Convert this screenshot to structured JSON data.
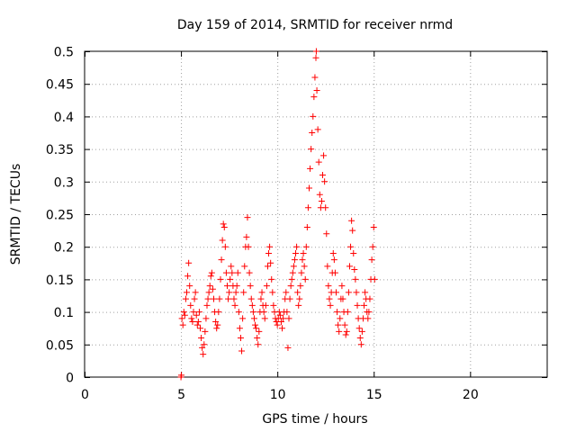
{
  "chart_data": {
    "type": "scatter",
    "title": "Day 159 of 2014, SRMTID for receiver nrmd",
    "xlabel": "GPS time / hours",
    "ylabel": "SRMTID / TECUs",
    "xlim": [
      0,
      24
    ],
    "ylim": [
      0,
      0.5
    ],
    "xticks": [
      0,
      5,
      10,
      15,
      20
    ],
    "yticks": [
      0,
      0.05,
      0.1,
      0.15,
      0.2,
      0.25,
      0.3,
      0.35,
      0.4,
      0.45,
      0.5
    ],
    "xtick_labels": [
      "0",
      "5",
      "10",
      "15",
      "20"
    ],
    "ytick_labels": [
      "0",
      "0.05",
      "0.1",
      "0.15",
      "0.2",
      "0.25",
      "0.3",
      "0.35",
      "0.4",
      "0.45",
      "0.5"
    ],
    "grid": true,
    "legend": "none",
    "marker": "+",
    "color": "#ff0000",
    "points": [
      [
        5.0,
        0.0
      ],
      [
        5.02,
        0.003
      ],
      [
        5.05,
        0.09
      ],
      [
        5.1,
        0.08
      ],
      [
        5.15,
        0.1
      ],
      [
        5.2,
        0.095
      ],
      [
        5.25,
        0.12
      ],
      [
        5.3,
        0.13
      ],
      [
        5.35,
        0.155
      ],
      [
        5.4,
        0.175
      ],
      [
        5.45,
        0.14
      ],
      [
        5.5,
        0.11
      ],
      [
        5.55,
        0.09
      ],
      [
        5.6,
        0.085
      ],
      [
        5.65,
        0.1
      ],
      [
        5.7,
        0.12
      ],
      [
        5.75,
        0.13
      ],
      [
        5.8,
        0.095
      ],
      [
        5.85,
        0.08
      ],
      [
        5.9,
        0.085
      ],
      [
        5.95,
        0.1
      ],
      [
        6.0,
        0.075
      ],
      [
        6.05,
        0.06
      ],
      [
        6.1,
        0.045
      ],
      [
        6.15,
        0.035
      ],
      [
        6.2,
        0.05
      ],
      [
        6.25,
        0.07
      ],
      [
        6.3,
        0.09
      ],
      [
        6.35,
        0.11
      ],
      [
        6.4,
        0.12
      ],
      [
        6.45,
        0.13
      ],
      [
        6.5,
        0.14
      ],
      [
        6.55,
        0.155
      ],
      [
        6.6,
        0.16
      ],
      [
        6.65,
        0.135
      ],
      [
        6.7,
        0.12
      ],
      [
        6.75,
        0.1
      ],
      [
        6.8,
        0.085
      ],
      [
        6.85,
        0.075
      ],
      [
        6.9,
        0.08
      ],
      [
        6.95,
        0.1
      ],
      [
        7.0,
        0.12
      ],
      [
        7.05,
        0.15
      ],
      [
        7.1,
        0.18
      ],
      [
        7.15,
        0.21
      ],
      [
        7.2,
        0.235
      ],
      [
        7.25,
        0.23
      ],
      [
        7.3,
        0.2
      ],
      [
        7.35,
        0.16
      ],
      [
        7.4,
        0.14
      ],
      [
        7.45,
        0.12
      ],
      [
        7.5,
        0.13
      ],
      [
        7.55,
        0.15
      ],
      [
        7.6,
        0.17
      ],
      [
        7.65,
        0.16
      ],
      [
        7.7,
        0.14
      ],
      [
        7.75,
        0.12
      ],
      [
        7.8,
        0.11
      ],
      [
        7.85,
        0.13
      ],
      [
        7.9,
        0.14
      ],
      [
        7.95,
        0.16
      ],
      [
        8.0,
        0.1
      ],
      [
        8.05,
        0.075
      ],
      [
        8.1,
        0.06
      ],
      [
        8.15,
        0.04
      ],
      [
        8.2,
        0.09
      ],
      [
        8.25,
        0.13
      ],
      [
        8.3,
        0.17
      ],
      [
        8.35,
        0.2
      ],
      [
        8.4,
        0.215
      ],
      [
        8.45,
        0.245
      ],
      [
        8.5,
        0.2
      ],
      [
        8.55,
        0.16
      ],
      [
        8.6,
        0.14
      ],
      [
        8.65,
        0.12
      ],
      [
        8.7,
        0.11
      ],
      [
        8.75,
        0.1
      ],
      [
        8.8,
        0.09
      ],
      [
        8.85,
        0.08
      ],
      [
        8.9,
        0.075
      ],
      [
        8.95,
        0.06
      ],
      [
        9.0,
        0.05
      ],
      [
        9.05,
        0.07
      ],
      [
        9.1,
        0.1
      ],
      [
        9.15,
        0.12
      ],
      [
        9.2,
        0.13
      ],
      [
        9.25,
        0.11
      ],
      [
        9.3,
        0.1
      ],
      [
        9.35,
        0.09
      ],
      [
        9.4,
        0.11
      ],
      [
        9.45,
        0.14
      ],
      [
        9.5,
        0.17
      ],
      [
        9.55,
        0.19
      ],
      [
        9.6,
        0.2
      ],
      [
        9.65,
        0.175
      ],
      [
        9.7,
        0.15
      ],
      [
        9.75,
        0.13
      ],
      [
        9.8,
        0.11
      ],
      [
        9.85,
        0.1
      ],
      [
        9.9,
        0.09
      ],
      [
        9.95,
        0.085
      ],
      [
        10.0,
        0.08
      ],
      [
        10.05,
        0.09
      ],
      [
        10.1,
        0.1
      ],
      [
        10.15,
        0.095
      ],
      [
        10.2,
        0.085
      ],
      [
        10.25,
        0.075
      ],
      [
        10.3,
        0.09
      ],
      [
        10.35,
        0.1
      ],
      [
        10.4,
        0.12
      ],
      [
        10.45,
        0.13
      ],
      [
        10.5,
        0.1
      ],
      [
        10.55,
        0.045
      ],
      [
        10.6,
        0.09
      ],
      [
        10.65,
        0.12
      ],
      [
        10.7,
        0.14
      ],
      [
        10.75,
        0.15
      ],
      [
        10.8,
        0.16
      ],
      [
        10.85,
        0.17
      ],
      [
        10.9,
        0.18
      ],
      [
        10.95,
        0.19
      ],
      [
        11.0,
        0.2
      ],
      [
        11.05,
        0.13
      ],
      [
        11.1,
        0.11
      ],
      [
        11.15,
        0.12
      ],
      [
        11.2,
        0.14
      ],
      [
        11.25,
        0.16
      ],
      [
        11.3,
        0.18
      ],
      [
        11.35,
        0.19
      ],
      [
        11.4,
        0.17
      ],
      [
        11.45,
        0.15
      ],
      [
        11.5,
        0.2
      ],
      [
        11.55,
        0.23
      ],
      [
        11.6,
        0.26
      ],
      [
        11.65,
        0.29
      ],
      [
        11.7,
        0.32
      ],
      [
        11.75,
        0.35
      ],
      [
        11.8,
        0.375
      ],
      [
        11.85,
        0.4
      ],
      [
        11.9,
        0.43
      ],
      [
        11.95,
        0.46
      ],
      [
        12.0,
        0.49
      ],
      [
        12.02,
        0.5
      ],
      [
        12.05,
        0.44
      ],
      [
        12.1,
        0.38
      ],
      [
        12.15,
        0.33
      ],
      [
        12.2,
        0.28
      ],
      [
        12.25,
        0.26
      ],
      [
        12.3,
        0.27
      ],
      [
        12.35,
        0.31
      ],
      [
        12.4,
        0.34
      ],
      [
        12.45,
        0.3
      ],
      [
        12.5,
        0.26
      ],
      [
        12.55,
        0.22
      ],
      [
        12.6,
        0.17
      ],
      [
        12.65,
        0.14
      ],
      [
        12.7,
        0.12
      ],
      [
        12.75,
        0.11
      ],
      [
        12.8,
        0.13
      ],
      [
        12.85,
        0.16
      ],
      [
        12.9,
        0.19
      ],
      [
        12.95,
        0.18
      ],
      [
        13.0,
        0.16
      ],
      [
        13.05,
        0.13
      ],
      [
        13.1,
        0.1
      ],
      [
        13.15,
        0.08
      ],
      [
        13.2,
        0.07
      ],
      [
        13.25,
        0.09
      ],
      [
        13.3,
        0.12
      ],
      [
        13.35,
        0.14
      ],
      [
        13.4,
        0.12
      ],
      [
        13.45,
        0.1
      ],
      [
        13.5,
        0.08
      ],
      [
        13.55,
        0.065
      ],
      [
        13.6,
        0.07
      ],
      [
        13.65,
        0.1
      ],
      [
        13.7,
        0.13
      ],
      [
        13.75,
        0.17
      ],
      [
        13.8,
        0.2
      ],
      [
        13.85,
        0.24
      ],
      [
        13.9,
        0.225
      ],
      [
        13.95,
        0.19
      ],
      [
        14.0,
        0.165
      ],
      [
        14.05,
        0.15
      ],
      [
        14.1,
        0.13
      ],
      [
        14.15,
        0.11
      ],
      [
        14.2,
        0.09
      ],
      [
        14.25,
        0.075
      ],
      [
        14.3,
        0.06
      ],
      [
        14.35,
        0.05
      ],
      [
        14.4,
        0.07
      ],
      [
        14.45,
        0.09
      ],
      [
        14.5,
        0.11
      ],
      [
        14.55,
        0.13
      ],
      [
        14.6,
        0.12
      ],
      [
        14.65,
        0.1
      ],
      [
        14.7,
        0.09
      ],
      [
        14.75,
        0.1
      ],
      [
        14.8,
        0.12
      ],
      [
        14.85,
        0.15
      ],
      [
        14.9,
        0.18
      ],
      [
        14.95,
        0.2
      ],
      [
        15.0,
        0.23
      ],
      [
        15.05,
        0.15
      ]
    ]
  }
}
